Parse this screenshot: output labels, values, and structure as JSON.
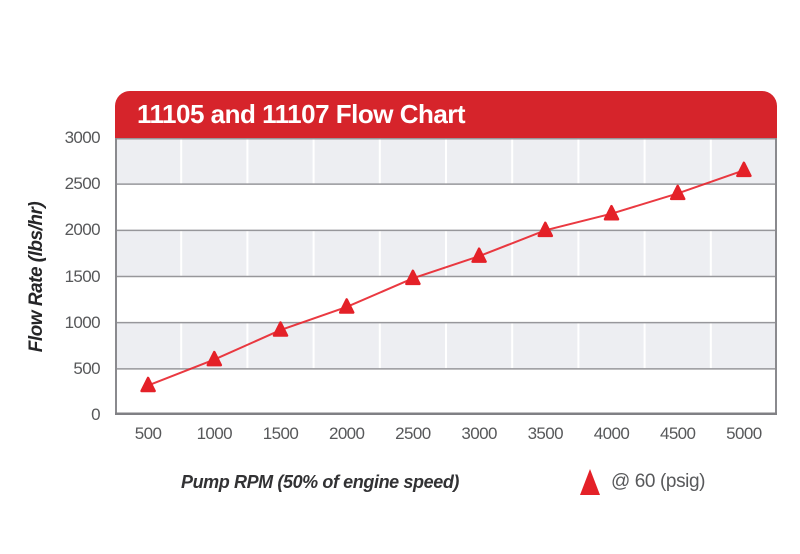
{
  "chart": {
    "title": "11105 and 11107 Flow Chart",
    "ylabel": "Flow Rate (lbs/hr)",
    "xlabel": "Pump RPM (50% of engine speed)",
    "legend_label": "@ 60 (psig)"
  },
  "chart_data": {
    "type": "line",
    "title": "11105 and 11107 Flow Chart",
    "xlabel": "Pump RPM (50% of engine speed)",
    "ylabel": "Flow Rate (lbs/hr)",
    "categories": [
      500,
      1000,
      1500,
      2000,
      2500,
      3000,
      3500,
      4000,
      4500,
      5000
    ],
    "series": [
      {
        "name": "@ 60 (psig)",
        "marker": "triangle",
        "values": [
          320,
          600,
          920,
          1170,
          1480,
          1720,
          2000,
          2180,
          2400,
          2650
        ]
      }
    ],
    "ylim": [
      0,
      3000
    ],
    "yticks": [
      0,
      500,
      1000,
      1500,
      2000,
      2500,
      3000
    ],
    "grid": "alternating horizontal bands with gray lines every 500; white vertical lines at category boundaries",
    "legend_position": "bottom-right",
    "colors": {
      "banner_red": "#D6242B",
      "series_red": "#E8242C",
      "marker_red": "#E42128",
      "band_gray": "#EDEEF2",
      "gridline_gray": "#97979B",
      "axis_border_gray": "#8A8A8E",
      "tick_text_gray": "#57585A",
      "title_text_white": "#FFFFFF"
    }
  }
}
